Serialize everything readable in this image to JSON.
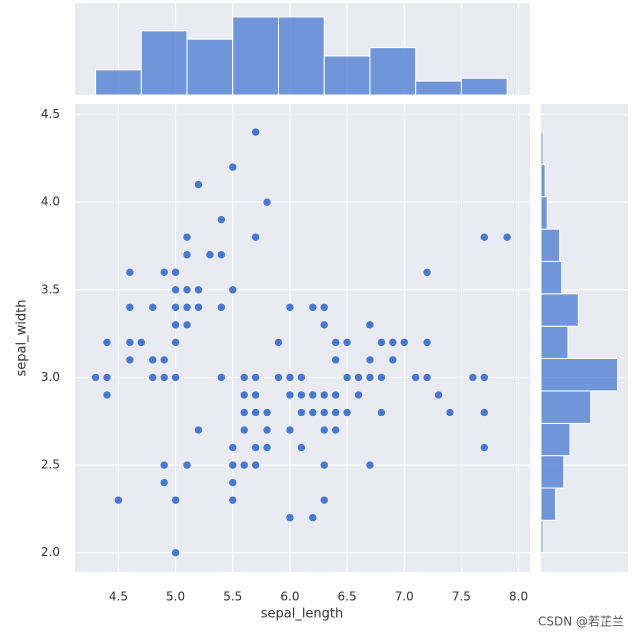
{
  "chart_data": [
    {
      "type": "scatter",
      "xlabel": "sepal_length",
      "ylabel": "sepal_width",
      "color": "#4878d0",
      "grid": true,
      "xlim": [
        4.12,
        8.1
      ],
      "ylim": [
        1.89,
        4.56
      ],
      "xticks": [
        4.5,
        {
          "value": 5,
          "label": "5.0"
        },
        5.5,
        {
          "value": 6,
          "label": "6.0"
        },
        6.5,
        {
          "value": 7,
          "label": "7.0"
        },
        7.5,
        {
          "value": 8,
          "label": "8.0"
        }
      ],
      "yticks": [
        {
          "value": 2,
          "label": "2.0"
        },
        2.5,
        {
          "value": 3,
          "label": "3.0"
        },
        3.5,
        {
          "value": 4,
          "label": "4.0"
        },
        4.5
      ],
      "x": [
        5.1,
        4.9,
        4.7,
        4.6,
        5.0,
        5.4,
        4.6,
        5.0,
        4.4,
        4.9,
        5.4,
        4.8,
        4.8,
        4.3,
        5.8,
        5.7,
        5.4,
        5.1,
        5.7,
        5.1,
        5.4,
        5.1,
        4.6,
        5.1,
        4.8,
        5.0,
        5.0,
        5.2,
        5.2,
        4.7,
        4.8,
        5.4,
        5.2,
        5.5,
        4.9,
        5.0,
        5.5,
        4.9,
        4.4,
        5.1,
        5.0,
        4.5,
        4.4,
        5.0,
        5.1,
        4.8,
        5.1,
        4.6,
        5.3,
        5.0,
        7.0,
        6.4,
        6.9,
        5.5,
        6.5,
        5.7,
        6.3,
        4.9,
        6.6,
        5.2,
        5.0,
        5.9,
        6.0,
        6.1,
        5.6,
        6.7,
        5.6,
        5.8,
        6.2,
        5.6,
        5.9,
        6.1,
        6.3,
        6.1,
        6.4,
        6.6,
        6.8,
        6.7,
        6.0,
        5.7,
        5.5,
        5.5,
        5.8,
        6.0,
        5.4,
        6.0,
        6.7,
        6.3,
        5.6,
        5.5,
        5.5,
        6.1,
        5.8,
        5.0,
        5.6,
        5.7,
        5.7,
        6.2,
        5.1,
        5.7,
        6.3,
        5.8,
        7.1,
        6.3,
        6.5,
        7.6,
        4.9,
        7.3,
        6.7,
        7.2,
        6.5,
        6.4,
        6.8,
        5.7,
        5.8,
        6.4,
        6.5,
        7.7,
        7.7,
        6.0,
        6.9,
        5.6,
        7.7,
        6.3,
        6.7,
        7.2,
        6.2,
        6.1,
        6.4,
        7.2,
        7.4,
        7.9,
        6.4,
        6.3,
        6.1,
        7.7,
        6.3,
        6.4,
        6.0,
        6.9,
        6.7,
        6.9,
        5.8,
        6.8,
        6.7,
        6.7,
        6.3,
        6.5,
        6.2,
        5.9
      ],
      "values": [
        3.5,
        3.0,
        3.2,
        3.1,
        3.6,
        3.9,
        3.4,
        3.4,
        2.9,
        3.1,
        3.7,
        3.4,
        3.0,
        3.0,
        4.0,
        4.4,
        3.9,
        3.5,
        3.8,
        3.8,
        3.4,
        3.7,
        3.6,
        3.3,
        3.4,
        3.0,
        3.4,
        3.5,
        3.4,
        3.2,
        3.1,
        3.4,
        4.1,
        4.2,
        3.1,
        3.2,
        3.5,
        3.6,
        3.0,
        3.4,
        3.5,
        2.3,
        3.2,
        3.5,
        3.8,
        3.0,
        3.8,
        3.2,
        3.7,
        3.3,
        3.2,
        3.2,
        3.1,
        2.3,
        2.8,
        2.8,
        3.3,
        2.4,
        2.9,
        2.7,
        2.0,
        3.0,
        2.2,
        2.9,
        2.9,
        3.1,
        3.0,
        2.7,
        2.2,
        2.5,
        3.2,
        2.8,
        2.5,
        2.8,
        2.9,
        3.0,
        2.8,
        3.0,
        2.9,
        2.6,
        2.4,
        2.4,
        2.7,
        2.7,
        3.0,
        3.4,
        3.1,
        2.3,
        3.0,
        2.5,
        2.6,
        3.0,
        2.6,
        2.3,
        2.7,
        3.0,
        2.9,
        2.9,
        2.5,
        2.8,
        3.3,
        2.7,
        3.0,
        2.9,
        3.0,
        3.0,
        2.5,
        2.9,
        2.5,
        3.6,
        3.2,
        2.7,
        3.0,
        2.5,
        2.8,
        3.2,
        3.0,
        3.8,
        2.6,
        2.2,
        3.2,
        2.8,
        2.8,
        2.7,
        3.3,
        3.2,
        2.8,
        3.0,
        2.8,
        3.0,
        2.8,
        3.8,
        2.8,
        2.8,
        2.6,
        3.0,
        3.4,
        3.1,
        3.0,
        3.1,
        3.1,
        3.1,
        2.7,
        3.2,
        3.3,
        3.0,
        2.5,
        3.0,
        3.4,
        3.0
      ]
    },
    {
      "type": "histogram",
      "orientation": "vertical",
      "color": "#4878d0",
      "ylim": [
        0,
        33
      ],
      "bins": [
        4.3,
        4.7,
        5.1,
        5.5,
        5.9,
        6.3,
        6.7,
        7.1,
        7.5,
        7.9
      ],
      "values": [
        9,
        23,
        20,
        28,
        28,
        14,
        17,
        5,
        6
      ]
    },
    {
      "type": "histogram",
      "orientation": "horizontal",
      "color": "#4878d0",
      "xlim": [
        0,
        42
      ],
      "bins": [
        2.0,
        2.185,
        2.369,
        2.554,
        2.738,
        2.923,
        3.108,
        3.292,
        3.477,
        3.662,
        3.846,
        4.031,
        4.215,
        4.4
      ],
      "values": [
        1,
        7,
        11,
        14,
        24,
        37,
        13,
        18,
        10,
        9,
        3,
        2,
        1
      ]
    }
  ],
  "watermark": "CSDN @若芷兰"
}
